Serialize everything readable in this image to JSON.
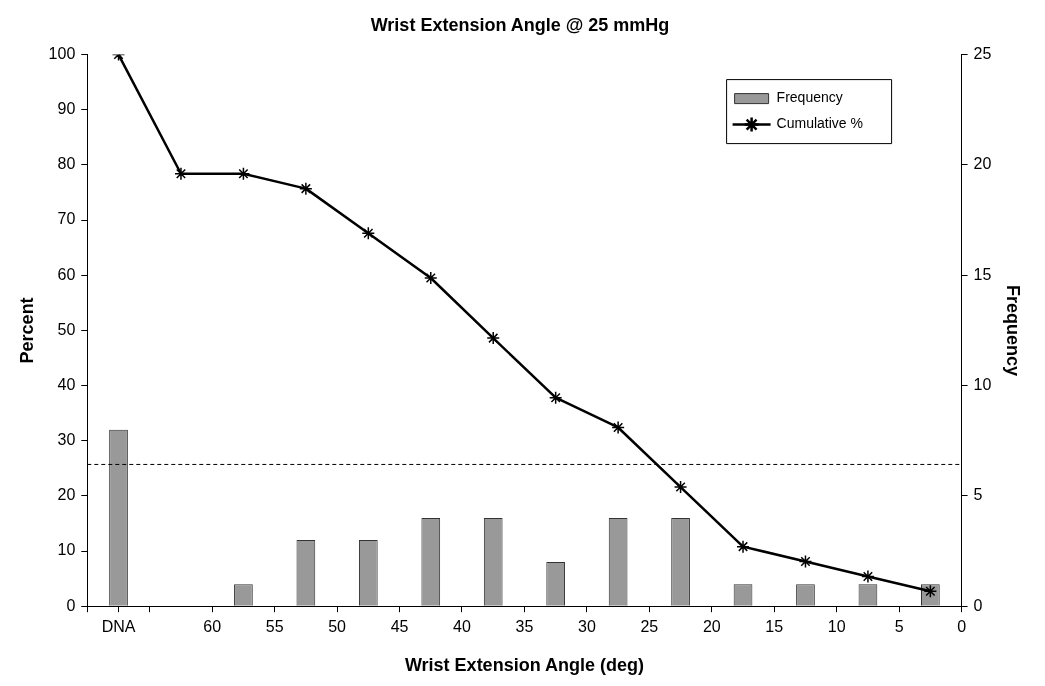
{
  "chart_data": {
    "type": "bar",
    "title": "Wrist Extension Angle @ 25 mmHg",
    "xlabel": "Wrist Extension Angle (deg)",
    "ylabel": "Percent",
    "y2label": "Frequency",
    "x": [
      67.5,
      62.5,
      57.5,
      52.5,
      47.5,
      42.5,
      37.5,
      32.5,
      27.5,
      22.5,
      17.5,
      12.5,
      7.5,
      2.5
    ],
    "xlim": [
      70,
      0
    ],
    "xticks": [
      {
        "value": 70,
        "label": null
      },
      {
        "value": 67.5,
        "label": "DNA"
      },
      {
        "value": 65,
        "label": null
      },
      60,
      55,
      50,
      45,
      40,
      35,
      30,
      25,
      20,
      15,
      10,
      5,
      0
    ],
    "ylim": [
      0,
      100
    ],
    "yticks": [
      0,
      10,
      20,
      30,
      40,
      50,
      60,
      70,
      80,
      90,
      100
    ],
    "y2lim": [
      0,
      25
    ],
    "y2ticks": [
      0,
      5,
      10,
      15,
      20,
      25
    ],
    "series": [
      {
        "name": "Frequency",
        "axis": "y2",
        "color": "#999999",
        "values": [
          8,
          0,
          1,
          3,
          3,
          4,
          4,
          2,
          4,
          4,
          1,
          1,
          1,
          1
        ]
      },
      {
        "name": "Cumulative %",
        "type": "line",
        "color": "#000000",
        "marker": "cross",
        "values": [
          100,
          78.4,
          78.4,
          75.7,
          67.6,
          59.5,
          48.6,
          37.8,
          32.4,
          21.6,
          10.8,
          8.1,
          5.4,
          2.7
        ]
      }
    ],
    "ref_lines": [
      {
        "axis": "y",
        "value": 25.7,
        "line_style": "dashed",
        "color": "#000000"
      }
    ],
    "legend": "top right",
    "grid": false
  }
}
